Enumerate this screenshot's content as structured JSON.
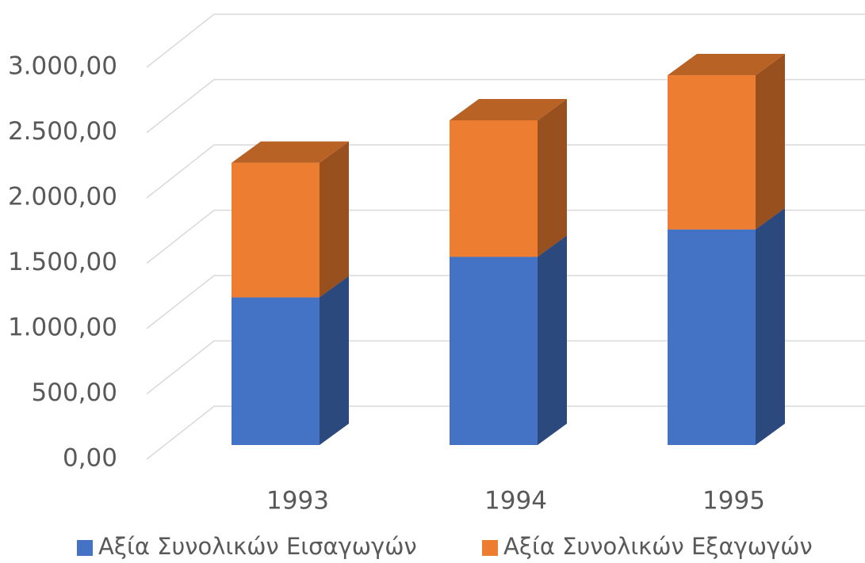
{
  "chart_data": {
    "type": "bar3d_stacked",
    "categories": [
      "1993",
      "1994",
      "1995"
    ],
    "series": [
      {
        "name": "Αξία Συνολικών Εισαγωγών",
        "color": "#4472c4",
        "values": [
          1130,
          1440,
          1650
        ]
      },
      {
        "name": "Αξία Συνολικών Εξαγωγών",
        "color": "#ed7d31",
        "values": [
          1030,
          1045,
          1180
        ]
      }
    ],
    "ylim": [
      0,
      3000
    ],
    "yticks": [
      {
        "value": 0,
        "label": "0,00"
      },
      {
        "value": 500,
        "label": "500,00"
      },
      {
        "value": 1000,
        "label": "1.000,00"
      },
      {
        "value": 1500,
        "label": "1.500,00"
      },
      {
        "value": 2000,
        "label": "2.000,00"
      },
      {
        "value": 2500,
        "label": "2.500,00"
      },
      {
        "value": 3000,
        "label": "3.000,00"
      }
    ],
    "grid": true,
    "legend": "bottom"
  }
}
